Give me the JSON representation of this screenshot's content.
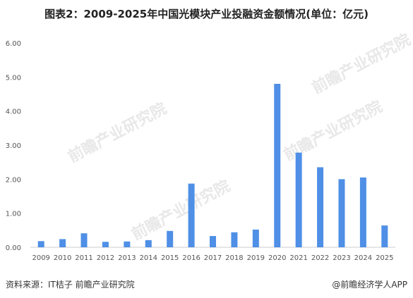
{
  "title": "图表2：2009-2025年中国光模块产业投融资金额情况(单位：亿元)",
  "watermark": "前瞻产业研究院",
  "footer": {
    "source": "资料来源：IT桔子 前瞻产业研究院",
    "credit": "@前瞻经济学人APP"
  },
  "colors": {
    "bar": "#4f8fe6",
    "axis": "#cccccc"
  },
  "chart_data": {
    "type": "bar",
    "title": "图表2：2009-2025年中国光模块产业投融资金额情况(单位：亿元)",
    "xlabel": "",
    "ylabel": "",
    "categories": [
      "2009",
      "2010",
      "2011",
      "2012",
      "2013",
      "2014",
      "2015",
      "2016",
      "2017",
      "2018",
      "2019",
      "2020",
      "2021",
      "2022",
      "2023",
      "2024",
      "2025"
    ],
    "values": [
      0.18,
      0.24,
      0.41,
      0.16,
      0.17,
      0.21,
      0.48,
      1.87,
      0.33,
      0.44,
      0.52,
      4.8,
      2.78,
      2.35,
      2.0,
      2.05,
      0.64
    ],
    "ylim": [
      0,
      6
    ],
    "yticks": [
      "0.00",
      "1.00",
      "2.00",
      "3.00",
      "4.00",
      "5.00",
      "6.00"
    ],
    "grid": false,
    "legend": "none"
  }
}
